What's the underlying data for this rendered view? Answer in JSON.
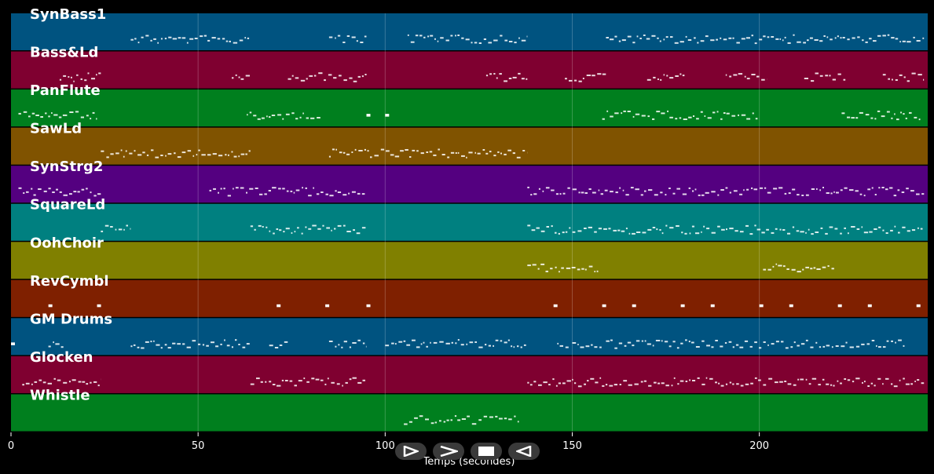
{
  "chart_data": {
    "type": "piano-roll",
    "xlabel": "Temps (secondes)",
    "xlim": [
      0,
      245
    ],
    "xticks": [
      0,
      50,
      100,
      150,
      200
    ],
    "grid": true,
    "tracks": [
      {
        "name": "SynBass1",
        "color": "#005380",
        "notes": [
          [
            32,
            64
          ],
          [
            85,
            95
          ],
          [
            106,
            138
          ],
          [
            159,
            244
          ]
        ]
      },
      {
        "name": "Bass&Ld",
        "color": "#7f0030",
        "notes": [
          [
            13,
            24
          ],
          [
            59,
            64
          ],
          [
            74,
            95
          ],
          [
            127,
            138
          ],
          [
            148,
            159
          ],
          [
            170,
            180
          ],
          [
            191,
            202
          ],
          [
            212,
            223
          ],
          [
            233,
            244
          ]
        ]
      },
      {
        "name": "PanFlute",
        "color": "#007f1e",
        "notes": [
          [
            2,
            23
          ],
          [
            63,
            83
          ],
          [
            95,
            96
          ],
          [
            100,
            101
          ],
          [
            158,
            200
          ],
          [
            222,
            243
          ]
        ]
      },
      {
        "name": "SawLd",
        "color": "#805300",
        "notes": [
          [
            24,
            64
          ],
          [
            85,
            138
          ]
        ]
      },
      {
        "name": "SynStrg2",
        "color": "#540080",
        "notes": [
          [
            2,
            24
          ],
          [
            53,
            95
          ],
          [
            138,
            244
          ]
        ]
      },
      {
        "name": "SquareLd",
        "color": "#008080",
        "notes": [
          [
            24,
            32
          ],
          [
            64,
            95
          ],
          [
            138,
            244
          ]
        ]
      },
      {
        "name": "OohChoir",
        "color": "#808000",
        "notes": [
          [
            138,
            157
          ],
          [
            201,
            220
          ]
        ]
      },
      {
        "name": "RevCymbl",
        "color": "#7f2000",
        "notes": [
          [
            10,
            11
          ],
          [
            23,
            24
          ],
          [
            71,
            72
          ],
          [
            84,
            85
          ],
          [
            95,
            96
          ],
          [
            145,
            146
          ],
          [
            158,
            159
          ],
          [
            166,
            167
          ],
          [
            179,
            180
          ],
          [
            187,
            188
          ],
          [
            200,
            201
          ],
          [
            208,
            209
          ],
          [
            221,
            222
          ],
          [
            229,
            230
          ],
          [
            242,
            243
          ]
        ]
      },
      {
        "name": "GM Drums",
        "color": "#005380",
        "notes": [
          [
            0,
            1
          ],
          [
            10,
            14
          ],
          [
            32,
            64
          ],
          [
            69,
            74
          ],
          [
            85,
            95
          ],
          [
            100,
            138
          ],
          [
            146,
            149
          ],
          [
            150,
            158
          ],
          [
            159,
            239
          ]
        ]
      },
      {
        "name": "Glocken",
        "color": "#7f0030",
        "notes": [
          [
            3,
            24
          ],
          [
            64,
            95
          ],
          [
            138,
            244
          ]
        ]
      },
      {
        "name": "Whistle",
        "color": "#007f1e",
        "notes": [
          [
            105,
            136
          ]
        ]
      }
    ]
  },
  "controls": {
    "play": "play-icon",
    "forward": "fast-forward-icon",
    "stop": "stop-icon",
    "rewind": "rewind-icon"
  }
}
